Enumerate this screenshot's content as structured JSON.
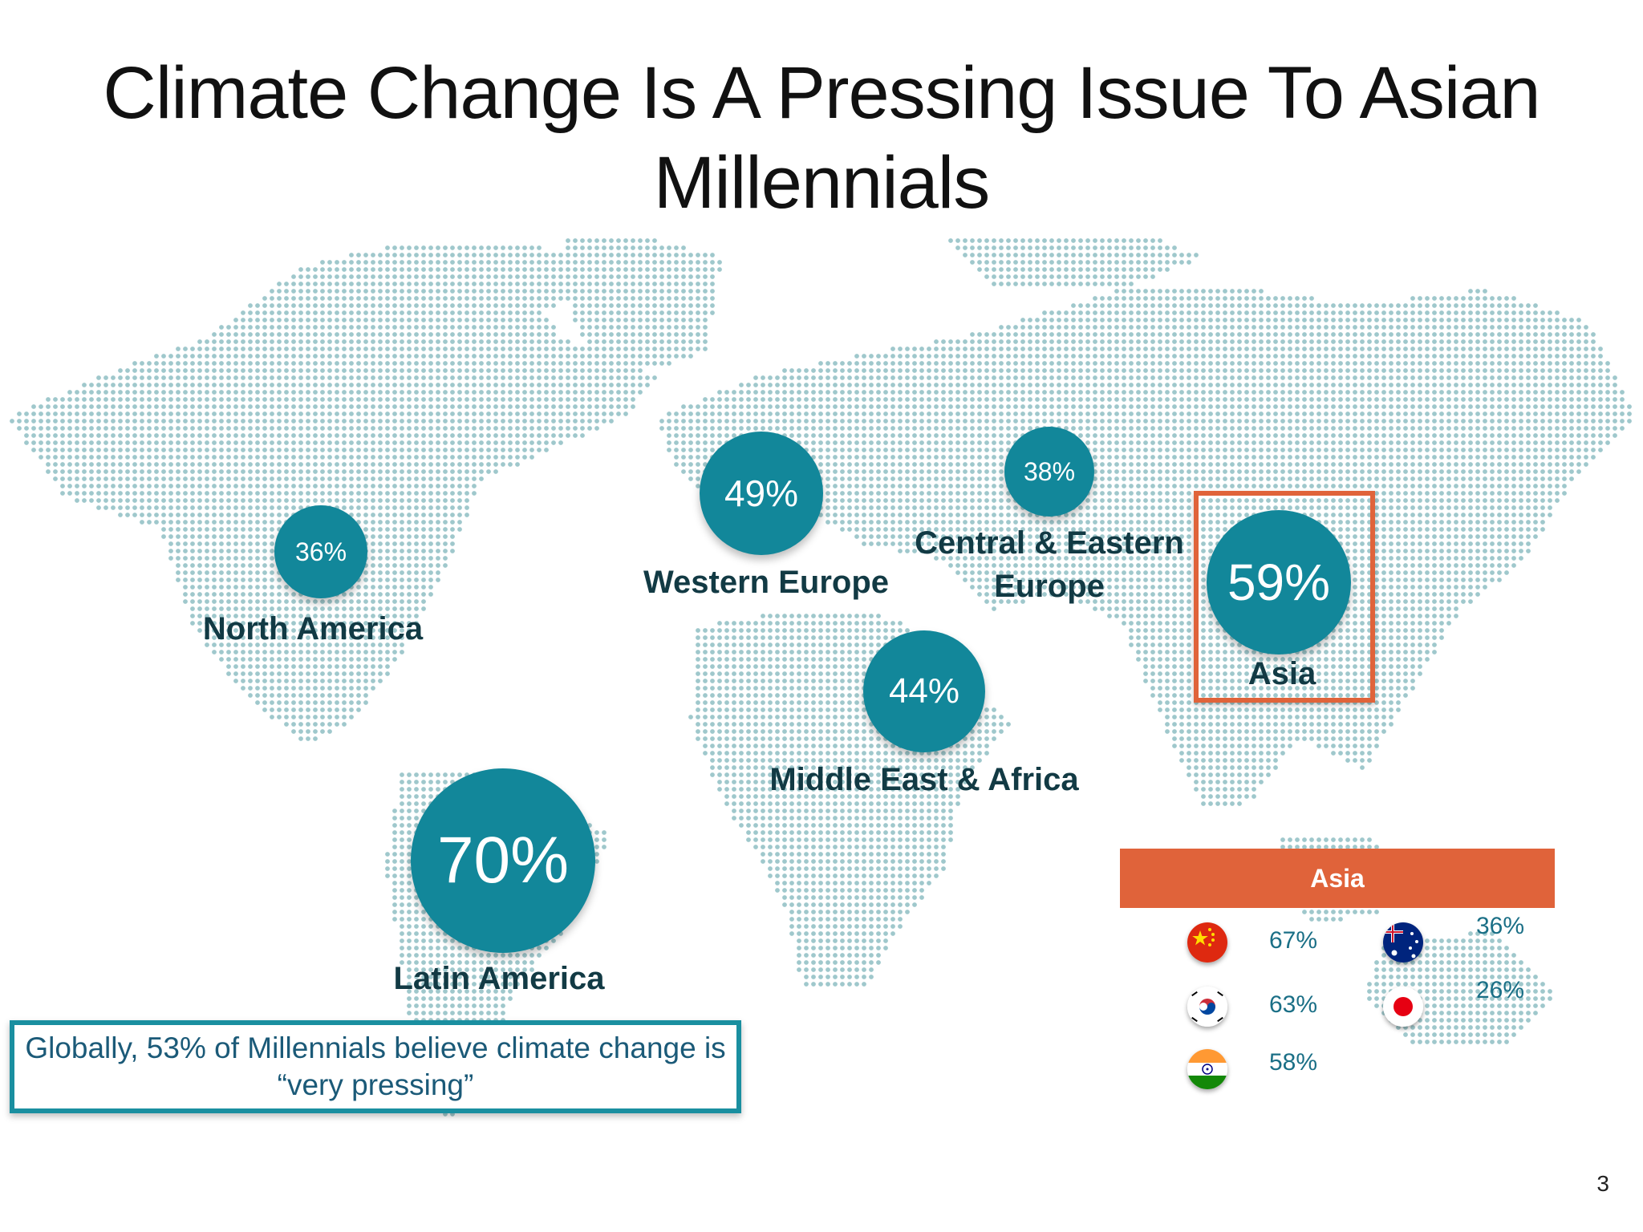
{
  "title": {
    "line1": "Climate Change Is A Pressing Issue To Asian",
    "line2": "Millennials"
  },
  "regions": [
    {
      "name": "North America",
      "value": "36%"
    },
    {
      "name": "Latin America",
      "value": "70%"
    },
    {
      "name": "Western Europe",
      "value": "49%"
    },
    {
      "name": "Central & Eastern Europe",
      "name_line1": "Central & Eastern",
      "name_line2": "Europe",
      "value": "38%"
    },
    {
      "name": "Middle East & Africa",
      "value": "44%"
    },
    {
      "name": "Asia",
      "value": "59%"
    }
  ],
  "asia_panel": {
    "header": "Asia",
    "countries": [
      {
        "flag": "china-flag-icon",
        "value": "67%"
      },
      {
        "flag": "south-korea-flag-icon",
        "value": "63%"
      },
      {
        "flag": "india-flag-icon",
        "value": "58%"
      },
      {
        "flag": "australia-flag-icon",
        "value": "36%"
      },
      {
        "flag": "japan-flag-icon",
        "value": "26%"
      }
    ]
  },
  "note": {
    "line1": "Globally, 53% of Millennials believe climate change is",
    "line2": "“very pressing”"
  },
  "page_number": "3",
  "colors": {
    "bubble": "#12879a",
    "map_dots": "#9fc8cc",
    "accent": "#e0633a",
    "label": "#123a44"
  }
}
